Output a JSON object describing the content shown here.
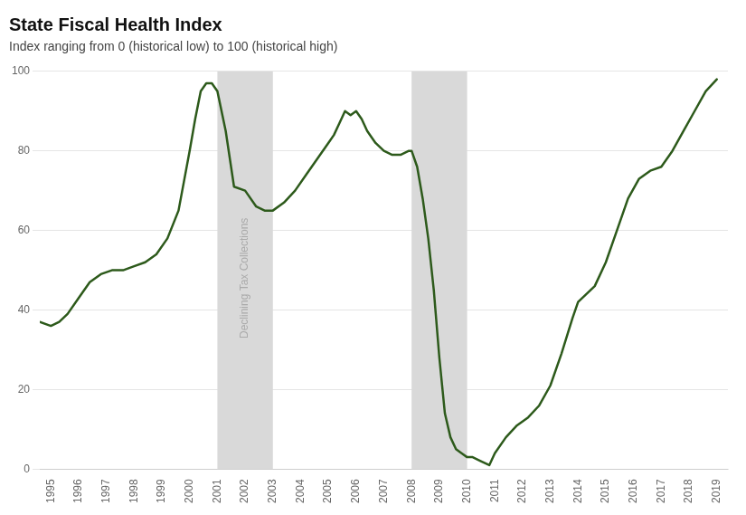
{
  "chart_data": {
    "type": "line",
    "title": "State Fiscal Health Index",
    "subtitle": "Index ranging from 0 (historical low) to 100 (historical high)",
    "x": [
      1994.6,
      1995.0,
      1995.3,
      1995.6,
      1996.0,
      1996.4,
      1996.8,
      1997.2,
      1997.6,
      1998.0,
      1998.4,
      1998.8,
      1999.2,
      1999.6,
      2000.0,
      2000.2,
      2000.4,
      2000.6,
      2000.8,
      2001.0,
      2001.3,
      2001.6,
      2002.0,
      2002.4,
      2002.7,
      2003.0,
      2003.4,
      2003.8,
      2004.2,
      2004.6,
      2005.0,
      2005.2,
      2005.4,
      2005.6,
      2005.8,
      2006.0,
      2006.2,
      2006.4,
      2006.7,
      2007.0,
      2007.3,
      2007.6,
      2007.9,
      2008.0,
      2008.2,
      2008.4,
      2008.6,
      2008.8,
      2009.0,
      2009.2,
      2009.4,
      2009.6,
      2009.8,
      2010.0,
      2010.2,
      2010.5,
      2010.8,
      2011.0,
      2011.4,
      2011.8,
      2012.2,
      2012.6,
      2013.0,
      2013.4,
      2013.8,
      2014.0,
      2014.3,
      2014.6,
      2015.0,
      2015.4,
      2015.8,
      2016.2,
      2016.6,
      2017.0,
      2017.4,
      2017.8,
      2018.2,
      2018.6,
      2019.0
    ],
    "values": [
      37,
      36,
      37,
      39,
      43,
      47,
      49,
      50,
      50,
      51,
      52,
      54,
      58,
      65,
      80,
      88,
      95,
      97,
      97,
      95,
      85,
      71,
      70,
      66,
      65,
      65,
      67,
      70,
      74,
      78,
      82,
      84,
      87,
      90,
      89,
      90,
      88,
      85,
      82,
      80,
      79,
      79,
      80,
      80,
      76,
      68,
      58,
      45,
      28,
      14,
      8,
      5,
      4,
      3,
      3,
      2,
      1,
      4,
      8,
      11,
      13,
      16,
      21,
      29,
      38,
      42,
      44,
      46,
      52,
      60,
      68,
      73,
      75,
      76,
      80,
      85,
      90,
      95,
      98
    ],
    "color": "#2d5a1b",
    "xlim": [
      1994.6,
      2019.4
    ],
    "xticks": [
      1995,
      1996,
      1997,
      1998,
      1999,
      2000,
      2001,
      2002,
      2003,
      2004,
      2005,
      2006,
      2007,
      2008,
      2009,
      2010,
      2011,
      2012,
      2013,
      2014,
      2015,
      2016,
      2017,
      2018,
      2019
    ],
    "ylim": [
      0,
      100
    ],
    "yticks": [
      0,
      20,
      40,
      60,
      80,
      100
    ],
    "grid": true,
    "shaded_regions": [
      {
        "from": 2001,
        "to": 2003,
        "color": "#d9d9d9"
      },
      {
        "from": 2008,
        "to": 2010,
        "color": "#d9d9d9"
      }
    ],
    "annotations": [
      {
        "text": "Declining Tax Collections",
        "x": 2002.0,
        "y": 48,
        "color": "#aaaaaa"
      }
    ]
  }
}
